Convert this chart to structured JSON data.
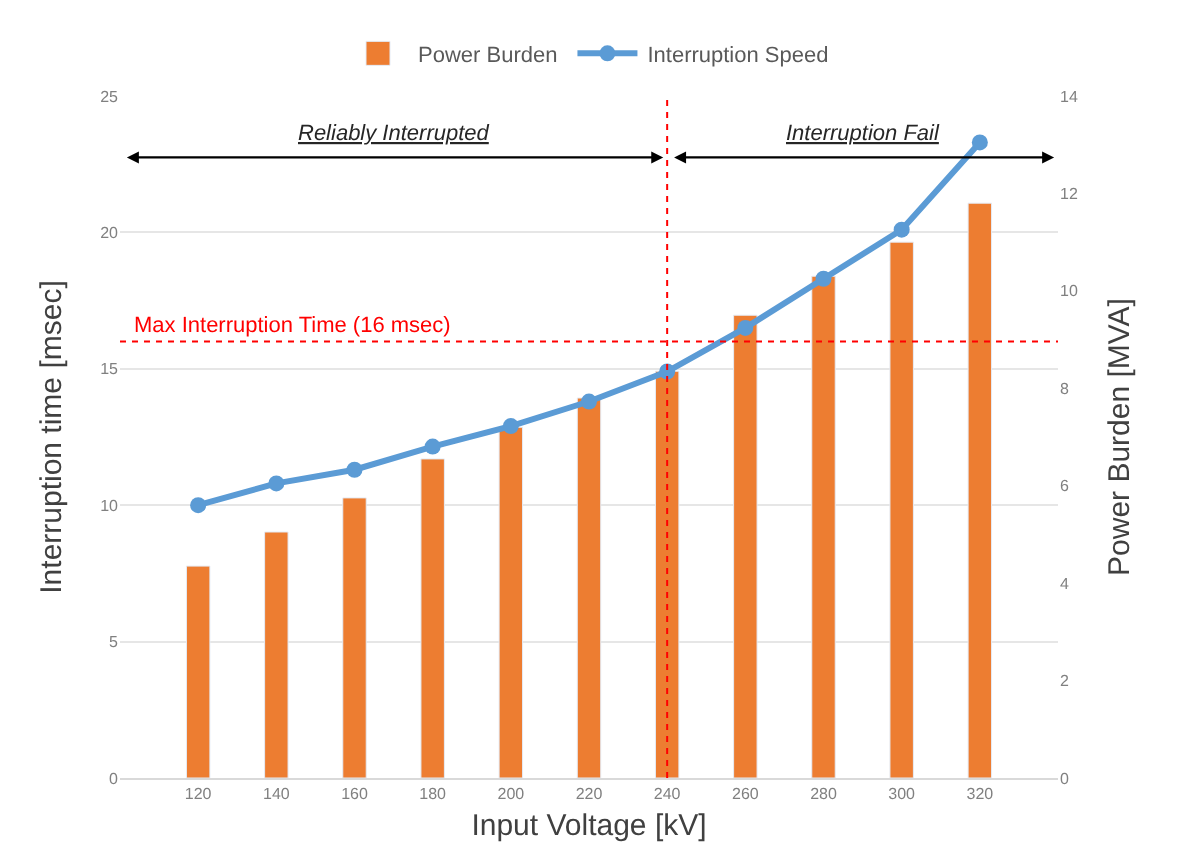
{
  "chart_data": {
    "type": "bar",
    "xlabel": "Input Voltage [kV]",
    "ylabel": "Interruption time [msec]",
    "y2label": "Power Burden [MVA]",
    "x": [
      120,
      140,
      160,
      180,
      200,
      220,
      240,
      260,
      280,
      300,
      320
    ],
    "xlim": [
      100,
      340
    ],
    "xticks": [
      120,
      140,
      160,
      180,
      200,
      220,
      240,
      260,
      280,
      300,
      320
    ],
    "ylim": [
      0,
      25
    ],
    "yticks": [
      0,
      5,
      10,
      15,
      20,
      25
    ],
    "y2lim": [
      0,
      14
    ],
    "y2ticks": [
      0,
      2,
      4,
      6,
      8,
      10,
      12,
      14
    ],
    "grid": "y",
    "legend": "top",
    "series": [
      {
        "name": "Power Burden",
        "axis": "y2",
        "color": "#ed7d31",
        "values": [
          4.35,
          5.05,
          5.75,
          6.55,
          7.2,
          7.8,
          8.35,
          9.5,
          10.3,
          11.0,
          11.8
        ]
      },
      {
        "name": "Interruption Speed",
        "type": "line",
        "axis": "y",
        "color": "#5b9bd5",
        "marker": "circle",
        "line_style": "solid",
        "values": [
          10.0,
          10.8,
          11.3,
          12.15,
          12.9,
          13.8,
          14.9,
          16.5,
          18.3,
          20.1,
          23.3
        ]
      }
    ],
    "ref_lines": [
      {
        "axis": "y",
        "value": 16,
        "label": "Max Interruption Time (16 msec)",
        "color": "#ff0000",
        "line_style": "dotted"
      },
      {
        "axis": "x",
        "value": 240,
        "color": "#ff0000",
        "line_style": "dotted"
      }
    ],
    "annotations": [
      "Reliably Interrupted",
      "Interruption Fail"
    ]
  }
}
